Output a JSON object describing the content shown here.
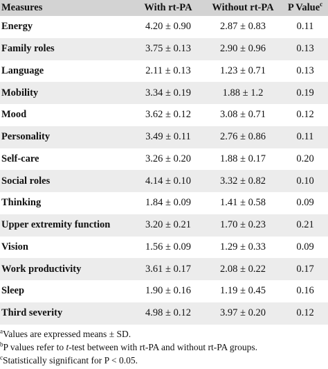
{
  "table": {
    "headers": {
      "measures": "Measures",
      "with": "With rt-PA",
      "without": "Without rt-PA",
      "pvalue": "P Value",
      "pvalue_sup": "c"
    },
    "rows": [
      {
        "measure": "Energy",
        "with": "4.20 ± 0.90",
        "without": "2.87 ± 0.83",
        "p": "0.11"
      },
      {
        "measure": "Family roles",
        "with": "3.75 ± 0.13",
        "without": "2.90 ± 0.96",
        "p": "0.13"
      },
      {
        "measure": "Language",
        "with": "2.11 ± 0.13",
        "without": "1.23 ± 0.71",
        "p": "0.13"
      },
      {
        "measure": "Mobility",
        "with": "3.34 ± 0.19",
        "without": "1.88 ± 1.2",
        "p": "0.19"
      },
      {
        "measure": "Mood",
        "with": "3.62 ± 0.12",
        "without": "3.08 ± 0.71",
        "p": "0.12"
      },
      {
        "measure": "Personality",
        "with": "3.49 ± 0.11",
        "without": "2.76 ± 0.86",
        "p": "0.11"
      },
      {
        "measure": "Self-care",
        "with": "3.26 ± 0.20",
        "without": "1.88 ± 0.17",
        "p": "0.20"
      },
      {
        "measure": "Social roles",
        "with": "4.14 ± 0.10",
        "without": "3.32 ± 0.82",
        "p": "0.10"
      },
      {
        "measure": "Thinking",
        "with": "1.84 ± 0.09",
        "without": "1.41 ± 0.58",
        "p": "0.09"
      },
      {
        "measure": "Upper extremity function",
        "with": "3.20 ± 0.21",
        "without": "1.70 ± 0.23",
        "p": "0.21"
      },
      {
        "measure": "Vision",
        "with": "1.56 ± 0.09",
        "without": "1.29 ± 0.33",
        "p": "0.09"
      },
      {
        "measure": "Work productivity",
        "with": "3.61 ± 0.17",
        "without": "2.08 ± 0.22",
        "p": "0.17"
      },
      {
        "measure": "Sleep",
        "with": "1.90 ± 0.16",
        "without": "1.19 ± 0.45",
        "p": "0.16"
      },
      {
        "measure": "Third severity",
        "with": "4.98 ± 0.12",
        "without": "3.97 ± 0.20",
        "p": "0.12"
      }
    ]
  },
  "footnotes": [
    {
      "mark": "a",
      "pre": "Values are expressed means ± SD.",
      "italic": "",
      "post": ""
    },
    {
      "mark": "b",
      "pre": "P values refer to ",
      "italic": "t",
      "post": "-test between with rt-PA and without rt-PA groups."
    },
    {
      "mark": "c",
      "pre": "Statistically significant for P < 0.05.",
      "italic": "",
      "post": ""
    }
  ]
}
